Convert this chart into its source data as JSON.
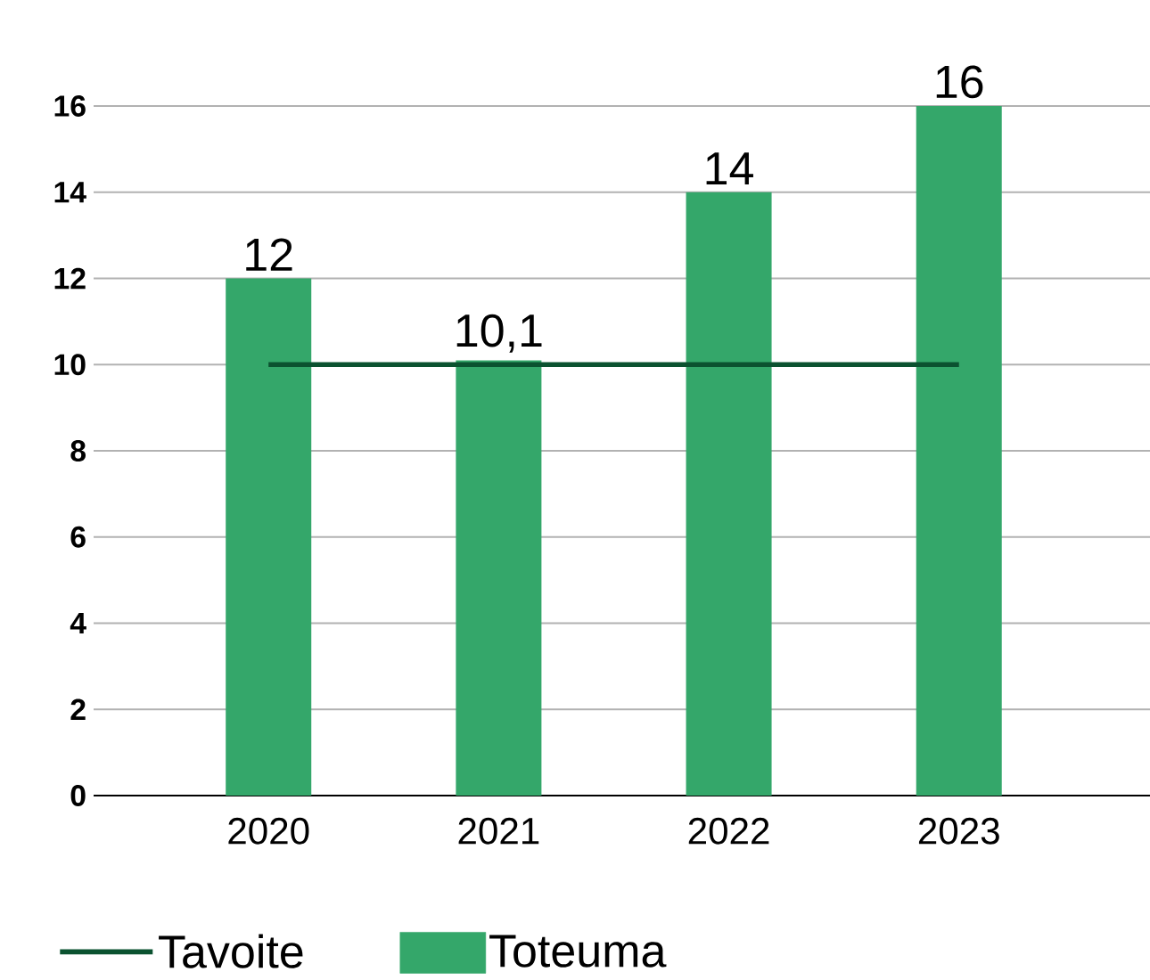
{
  "chart_data": {
    "type": "bar",
    "categories": [
      "2020",
      "2021",
      "2022",
      "2023"
    ],
    "series": [
      {
        "name": "Tavoite",
        "type": "line",
        "color": "#0b5230",
        "values": [
          10,
          10,
          10,
          10
        ]
      },
      {
        "name": "Toteuma",
        "color": "#34a76a",
        "values": [
          12,
          10.1,
          14,
          16
        ],
        "value_labels": [
          "12",
          "10,1",
          "14",
          "16"
        ]
      }
    ],
    "ylim": [
      0,
      16
    ],
    "yticks": [
      0,
      2,
      4,
      6,
      8,
      10,
      12,
      14,
      16
    ],
    "grid": "y",
    "legend": "bottom"
  }
}
